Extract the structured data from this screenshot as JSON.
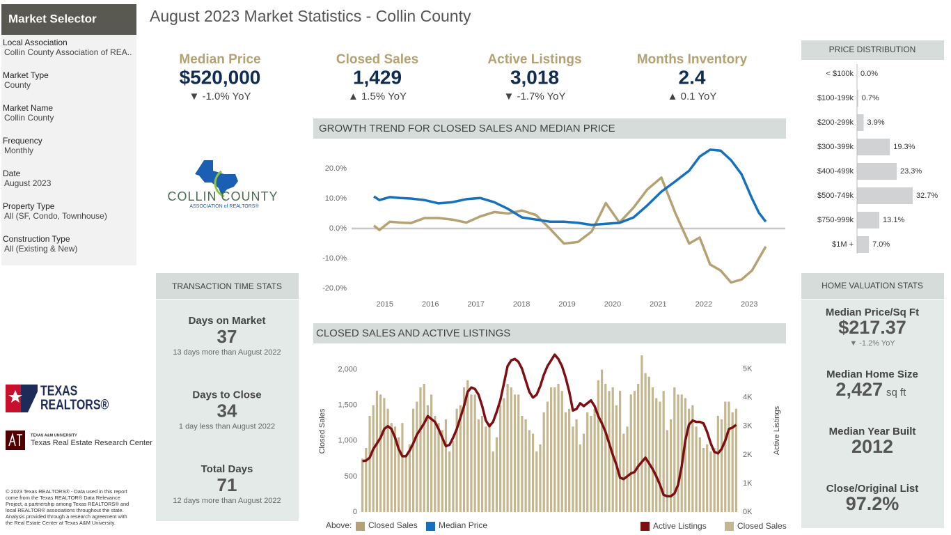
{
  "title": "August 2023 Market Statistics - Collin County",
  "sidebar": {
    "title": "Market Selector",
    "fields": [
      {
        "label": "Local Association",
        "value": "Collin County Association of REA.."
      },
      {
        "label": "Market Type",
        "value": "County"
      },
      {
        "label": "Market Name",
        "value": "Collin County"
      },
      {
        "label": "Frequency",
        "value": "Monthly"
      },
      {
        "label": "Date",
        "value": "August 2023"
      },
      {
        "label": "Property Type",
        "value": "All (SF, Condo, Townhouse)"
      },
      {
        "label": "Construction Type",
        "value": "All (Existing & New)"
      }
    ]
  },
  "kpis": [
    {
      "label": "Median Price",
      "value": "$520,000",
      "change": "▼ -1.0% YoY"
    },
    {
      "label": "Closed Sales",
      "value": "1,429",
      "change": "▲ 1.5% YoY"
    },
    {
      "label": "Active Listings",
      "value": "3,018",
      "change": "▼ -1.7% YoY"
    },
    {
      "label": "Months Inventory",
      "value": "2.4",
      "change": "▲ 0.1 YoY"
    }
  ],
  "transaction_stats": {
    "title": "TRANSACTION TIME STATS",
    "items": [
      {
        "label": "Days on Market",
        "value": "37",
        "note": "13 days more than August 2022"
      },
      {
        "label": "Days to Close",
        "value": "34",
        "note": "1 day less than August 2022"
      },
      {
        "label": "Total Days",
        "value": "71",
        "note": "12 days more than August 2022"
      }
    ]
  },
  "home_valuation": {
    "title": "HOME VALUATION STATS",
    "items": [
      {
        "label": "Median Price/Sq Ft",
        "value": "$217.37",
        "change": "▼ -1.2% YoY"
      },
      {
        "label": "Median Home Size",
        "value": "2,427",
        "unit": "sq ft"
      },
      {
        "label": "Median Year Built",
        "value": "2012"
      },
      {
        "label": "Close/Original List",
        "value": "97.2%"
      }
    ]
  },
  "logos": {
    "collin_name": "COLLIN COUNTY",
    "collin_sub": "ASSOCIATION of REALTORS®",
    "tr_line1": "TEXAS",
    "tr_line2": "REALTORS®",
    "tamu_line1": "TEXAS A&M UNIVERSITY",
    "tamu_line2": "Texas Real Estate Research Center"
  },
  "footer": "© 2023 Texas REALTORS® - Data used in this report come from the Texas REALTOR® Data Relevance Project, a partnership among Texas REALTORS® and local REALTOR® associations throughout the state. Analysis provided through a research agreement with the Real Estate Center at Texas A&M University.",
  "chart_data": [
    {
      "type": "line",
      "title": "GROWTH TREND FOR CLOSED SALES AND MEDIAN PRICE",
      "legend_prefix": "Above:",
      "x": [
        2014.76,
        2014.88,
        2015.11,
        2015.34,
        2015.57,
        2015.87,
        2016.18,
        2016.48,
        2016.79,
        2017.09,
        2017.4,
        2017.71,
        2018.01,
        2018.32,
        2018.62,
        2018.93,
        2019.24,
        2019.54,
        2019.85,
        2020.15,
        2020.46,
        2020.76,
        2021.07,
        2021.38,
        2021.68,
        2021.91,
        2022.14,
        2022.37,
        2022.6,
        2022.83,
        2023.06,
        2023.21,
        2023.36
      ],
      "xlim": [
        2014.27,
        2023.79
      ],
      "xticks": [
        2015,
        2016,
        2017,
        2018,
        2019,
        2020,
        2021,
        2022,
        2023
      ],
      "ylim": [
        -23,
        30
      ],
      "yticks": [
        {
          "value": -20,
          "label": "-20.0%"
        },
        {
          "value": -10,
          "label": "-10.0%"
        },
        {
          "value": 0,
          "label": "0.0%"
        },
        {
          "value": 10,
          "label": "10.0%"
        },
        {
          "value": 20,
          "label": "20.0%"
        }
      ],
      "series": [
        {
          "name": "Closed Sales",
          "color": "#b5a273",
          "values": [
            1,
            -0.5,
            2.3,
            2,
            1.8,
            3.5,
            3.5,
            3,
            2,
            4,
            5.5,
            5,
            6,
            4.5,
            0,
            -5,
            -4.5,
            -1,
            8.5,
            2,
            7,
            13,
            17,
            5,
            -5,
            -3,
            -12,
            -14,
            -18,
            -17,
            -14,
            -10,
            -6
          ]
        },
        {
          "name": "Median Price",
          "color": "#1570bd",
          "values": [
            10.7,
            9.5,
            10.5,
            10.2,
            10,
            9.5,
            8.4,
            8.8,
            9.8,
            10.2,
            8.8,
            6.5,
            3.7,
            3.0,
            2.3,
            2.3,
            1.9,
            1.2,
            1.6,
            1.9,
            3.7,
            7.7,
            12.3,
            15.8,
            19.3,
            24,
            26.3,
            26,
            22.8,
            18.1,
            10,
            5.3,
            2.3
          ]
        }
      ]
    },
    {
      "type": "bar",
      "title": "CLOSED SALES AND ACTIVE LISTINGS",
      "y_label": "Closed Sales",
      "y2_label": "Active Listings",
      "ylim": [
        0,
        2250
      ],
      "yticks": [
        0,
        500,
        {
          "value": 1000,
          "label": "1,000"
        },
        {
          "value": 1500,
          "label": "1,500"
        },
        {
          "value": 2000,
          "label": "2,000"
        }
      ],
      "y2lim": [
        0,
        5600
      ],
      "y2ticks": [
        {
          "value": 0,
          "label": "0K"
        },
        {
          "value": 1000,
          "label": "1K"
        },
        {
          "value": 2000,
          "label": "2K"
        },
        {
          "value": 3000,
          "label": "3K"
        },
        {
          "value": 4000,
          "label": "4K"
        },
        {
          "value": 5000,
          "label": "5K"
        }
      ],
      "series": [
        {
          "name": "Closed Sales",
          "type": "bar",
          "color": "#c4b68e",
          "values": [
            750,
            900,
            1350,
            1500,
            1700,
            1650,
            1600,
            1450,
            1250,
            1200,
            1050,
            1250,
            800,
            950,
            1450,
            1550,
            1750,
            1800,
            1500,
            1650,
            1350,
            1250,
            1150,
            1300,
            850,
            1000,
            1450,
            1500,
            1750,
            1850,
            1650,
            1650,
            1300,
            1350,
            1200,
            1250,
            850,
            1050,
            1500,
            1600,
            1800,
            1750,
            1650,
            1650,
            1350,
            1300,
            1150,
            1100,
            850,
            950,
            1400,
            1550,
            1750,
            1750,
            1800,
            1700,
            1400,
            1450,
            1200,
            1300,
            950,
            1100,
            1400,
            1350,
            1450,
            1850,
            2000,
            1800,
            1700,
            1750,
            1500,
            1700,
            1100,
            1200,
            1650,
            1700,
            1800,
            2200,
            1950,
            1900,
            1750,
            1600,
            1550,
            1700,
            1150,
            1300,
            1750,
            1650,
            1650,
            1600,
            1450,
            1500,
            1200,
            1050,
            900,
            950,
            850,
            900,
            1350,
            1300,
            1550,
            1550,
            1400,
            1450
          ]
        },
        {
          "name": "Active Listings",
          "type": "line",
          "axis": "y2",
          "color": "#7d0f12",
          "values": [
            1780,
            1800,
            1900,
            2200,
            2400,
            2600,
            2900,
            3000,
            2900,
            2600,
            2200,
            1950,
            1950,
            2150,
            2400,
            2700,
            2900,
            3100,
            3350,
            3250,
            3150,
            2900,
            2600,
            2300,
            2350,
            2600,
            2900,
            3300,
            3700,
            4200,
            4350,
            4300,
            4100,
            3700,
            3200,
            3000,
            3150,
            3500,
            3900,
            4500,
            5100,
            5300,
            5350,
            5250,
            5000,
            4600,
            4200,
            4000,
            4100,
            4400,
            4800,
            5100,
            5300,
            5500,
            5350,
            5100,
            4700,
            4200,
            3550,
            3600,
            3800,
            3700,
            3800,
            3900,
            3700,
            3350,
            3100,
            2800,
            2400,
            2000,
            1650,
            1200,
            1150,
            1250,
            1350,
            1400,
            1600,
            1750,
            1900,
            1700,
            1500,
            1250,
            950,
            600,
            550,
            550,
            650,
            950,
            1600,
            2500,
            3050,
            3200,
            3150,
            3150,
            3100,
            2800,
            2400,
            2100,
            2050,
            2200,
            2500,
            2900,
            2950,
            3050
          ]
        }
      ]
    },
    {
      "type": "bar",
      "orientation": "horizontal",
      "title": "PRICE DISTRIBUTION",
      "color": "#d0d2d3",
      "xlim": [
        0,
        33
      ],
      "categories": [
        "< $100k",
        "$100-199k",
        "$200-299k",
        "$300-399k",
        "$400-499k",
        "$500-749k",
        "$750-999k",
        "$1M +"
      ],
      "values": [
        0.0,
        0.7,
        3.9,
        19.3,
        23.3,
        32.7,
        13.1,
        7.0
      ],
      "value_labels": [
        "0.0%",
        "0.7%",
        "3.9%",
        "19.3%",
        "23.3%",
        "32.7%",
        "13.1%",
        "7.0%"
      ]
    }
  ]
}
